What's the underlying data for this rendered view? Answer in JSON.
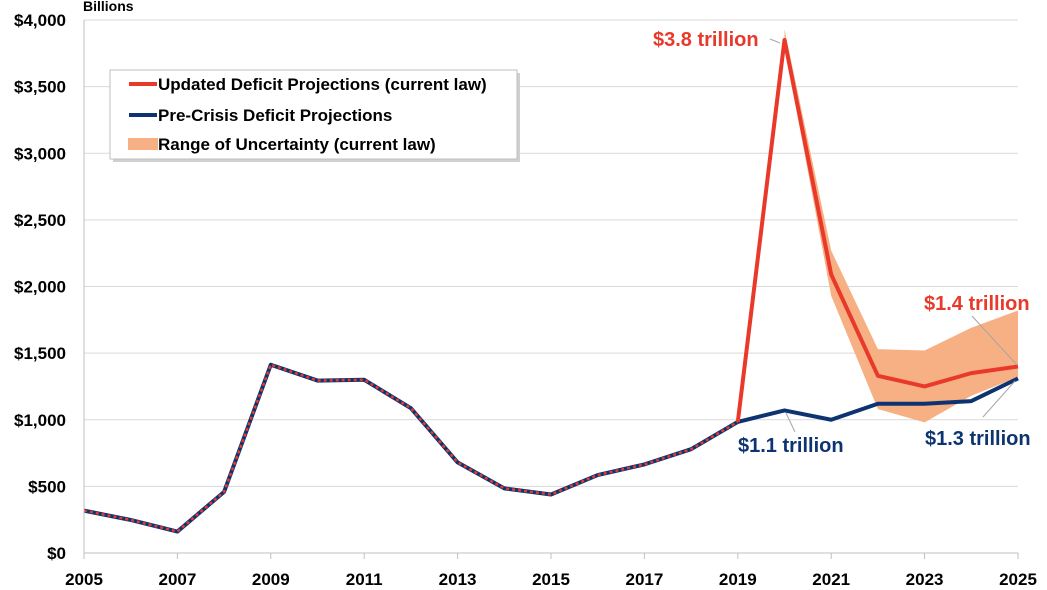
{
  "chart_data": {
    "type": "line",
    "unit_label": "Billions",
    "x": [
      2005,
      2006,
      2007,
      2008,
      2009,
      2010,
      2011,
      2012,
      2013,
      2014,
      2015,
      2016,
      2017,
      2018,
      2019,
      2020,
      2021,
      2022,
      2023,
      2024,
      2025
    ],
    "x_tick_labels": [
      "2005",
      "2007",
      "2009",
      "2011",
      "2013",
      "2015",
      "2017",
      "2019",
      "2021",
      "2023",
      "2025"
    ],
    "y_tick_labels": [
      "$0",
      "$500",
      "$1,000",
      "$1,500",
      "$2,000",
      "$2,500",
      "$3,000",
      "$3,500",
      "$4,000"
    ],
    "xlim": [
      2005,
      2025
    ],
    "ylim": [
      0,
      4000
    ],
    "grid": "horizontal",
    "legend_position": "top-left",
    "series": [
      {
        "name": "Updated Deficit Projections (current law)",
        "color": "#e8392b",
        "values": [
          318,
          248,
          161,
          459,
          1413,
          1294,
          1300,
          1087,
          680,
          485,
          439,
          585,
          665,
          779,
          984,
          3850,
          2090,
          1330,
          1250,
          1350,
          1400
        ]
      },
      {
        "name": "Pre-Crisis Deficit Projections",
        "color": "#0d3470",
        "values": [
          318,
          248,
          161,
          459,
          1413,
          1294,
          1300,
          1087,
          680,
          485,
          439,
          585,
          665,
          779,
          984,
          1070,
          1000,
          1120,
          1120,
          1140,
          1310
        ]
      }
    ],
    "uncertainty_band": {
      "name": "Range of Uncertainty (current law)",
      "color": "#f7b083",
      "x": [
        2020,
        2021,
        2022,
        2023,
        2024,
        2025
      ],
      "upper": [
        3930,
        2270,
        1530,
        1520,
        1690,
        1820
      ],
      "lower": [
        3800,
        1930,
        1080,
        980,
        1180,
        1320
      ]
    },
    "annotations": [
      {
        "text": "$3.8 trillion",
        "color": "#e8392b"
      },
      {
        "text": "$1.4 trillion",
        "color": "#e8392b"
      },
      {
        "text": "$1.1 trillion",
        "color": "#0d3470"
      },
      {
        "text": "$1.3 trillion",
        "color": "#0d3470"
      }
    ]
  }
}
